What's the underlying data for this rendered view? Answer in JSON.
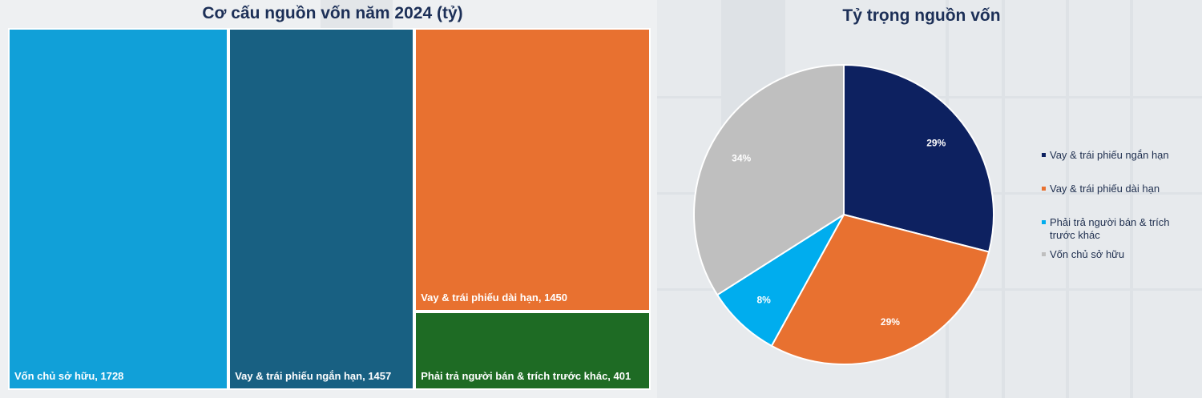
{
  "treemap_title": "Cơ cấu nguồn vốn năm 2024 (tỷ)",
  "pie_title": "Tỷ trọng nguồn vốn",
  "colors": {
    "short_term": "#0d2160",
    "long_term": "#e87130",
    "payables": "#00adee",
    "equity": "#bfbfbf",
    "treemap_equity": "#11a0d8",
    "treemap_short": "#186082",
    "treemap_long": "#e87130",
    "treemap_payables": "#1e6b24"
  },
  "chart_data": [
    {
      "type": "treemap",
      "title": "Cơ cấu nguồn vốn năm 2024 (tỷ)",
      "items": [
        {
          "name": "Vốn chủ sở hữu",
          "value": 1728,
          "label": "Vốn chủ sở hữu, 1728"
        },
        {
          "name": "Vay & trái phiếu ngắn hạn",
          "value": 1457,
          "label": "Vay & trái phiếu ngắn hạn, 1457"
        },
        {
          "name": "Vay & trái phiếu dài hạn",
          "value": 1450,
          "label": "Vay & trái phiếu dài hạn, 1450"
        },
        {
          "name": "Phải trả người bán & trích trước khác",
          "value": 401,
          "label": "Phải trả người bán & trích trước khác, 401"
        }
      ]
    },
    {
      "type": "pie",
      "title": "Tỷ trọng nguồn vốn",
      "slices": [
        {
          "name": "Vay & trái phiếu ngắn hạn",
          "value": 29,
          "label": "29%"
        },
        {
          "name": "Vay & trái phiếu dài hạn",
          "value": 29,
          "label": "29%"
        },
        {
          "name": "Phải trả người bán & trích trước khác",
          "value": 8,
          "label": "8%"
        },
        {
          "name": "Vốn chủ sở hữu",
          "value": 34,
          "label": "34%"
        }
      ],
      "legend": {
        "position": "right",
        "items": [
          "Vay & trái phiếu ngắn hạn",
          "Vay & trái phiếu dài hạn",
          "Phải trả người bán & trích trước khác",
          "Vốn chủ sở hữu"
        ]
      }
    }
  ]
}
